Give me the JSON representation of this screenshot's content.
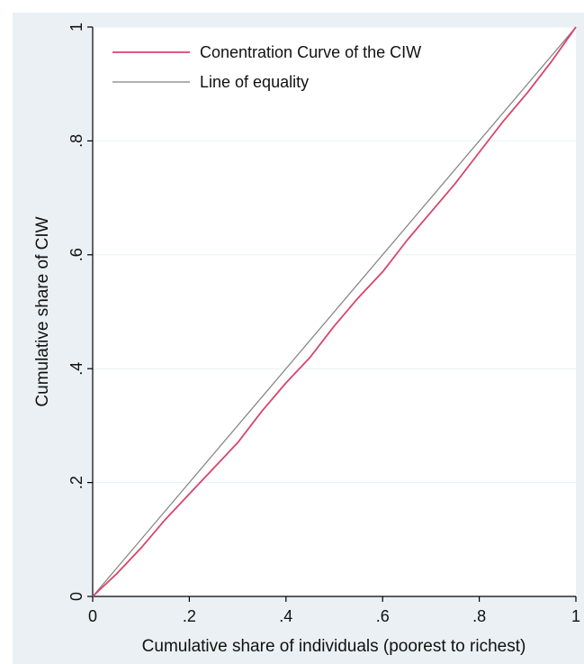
{
  "chart_data": {
    "type": "line",
    "title": "",
    "xlabel": "Cumulative share of individuals (poorest to richest)",
    "ylabel": "Cumulative share of CIW",
    "xlim": [
      0,
      1
    ],
    "ylim": [
      0,
      1
    ],
    "x_ticks": [
      {
        "value": 0,
        "label": "0"
      },
      {
        "value": 0.2,
        "label": ".2"
      },
      {
        "value": 0.4,
        "label": ".4"
      },
      {
        "value": 0.6,
        "label": ".6"
      },
      {
        "value": 0.8,
        "label": ".8"
      },
      {
        "value": 1,
        "label": "1"
      }
    ],
    "y_ticks": [
      {
        "value": 0,
        "label": "0"
      },
      {
        "value": 0.2,
        "label": ".2"
      },
      {
        "value": 0.4,
        "label": ".4"
      },
      {
        "value": 0.6,
        "label": ".6"
      },
      {
        "value": 0.8,
        "label": ".8"
      },
      {
        "value": 1,
        "label": "1"
      }
    ],
    "grid": true,
    "legend_position": "top-left",
    "series": [
      {
        "name": "Conentration Curve of the CIW",
        "color": "#d6456e",
        "x": [
          0,
          0.05,
          0.1,
          0.15,
          0.2,
          0.25,
          0.3,
          0.35,
          0.4,
          0.45,
          0.5,
          0.55,
          0.6,
          0.65,
          0.7,
          0.75,
          0.8,
          0.85,
          0.9,
          0.95,
          1
        ],
        "y": [
          0,
          0.04,
          0.085,
          0.135,
          0.18,
          0.225,
          0.27,
          0.325,
          0.375,
          0.42,
          0.475,
          0.525,
          0.57,
          0.625,
          0.675,
          0.725,
          0.78,
          0.835,
          0.885,
          0.94,
          1
        ]
      },
      {
        "name": "Line of equality",
        "color": "#808080",
        "x": [
          0,
          1
        ],
        "y": [
          0,
          1
        ]
      }
    ]
  }
}
